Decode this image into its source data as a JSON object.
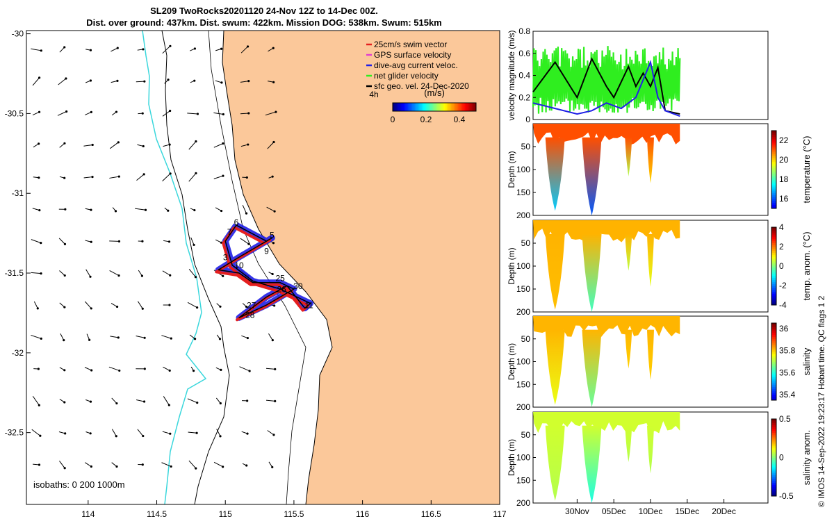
{
  "title_line1": "SL209 TwoRocks20201120 24-Nov 12Z to 14-Dec 00Z.",
  "title_line2": "Dist. over ground: 437km. Dist. swum: 422km. Mission DOG: 538km. Swum: 515km",
  "credit": "© IMOS 14-Sep-2022 19:23:17 Hobart time. QC flags 1 2",
  "colors": {
    "land": "#fbc89a",
    "coast": "#000000",
    "iso200": "#3ad7dc",
    "swim": "#e41f1f",
    "gps": "#e23fd0",
    "dac": "#1f1fe6",
    "net": "#2fee1f",
    "sfc": "#000000"
  },
  "map": {
    "xlim": [
      113.55,
      117
    ],
    "ylim": [
      -32.95,
      -29.98
    ],
    "xticks": [
      "114",
      "114.5",
      "115",
      "115.5",
      "116",
      "116.5",
      "117"
    ],
    "xtick_values": [
      114,
      114.5,
      115,
      115.5,
      116,
      116.5,
      117
    ],
    "yticks": [
      "-30",
      "-30.5",
      "-31",
      "-31.5",
      "-32",
      "-32.5"
    ],
    "ytick_values": [
      -30,
      -30.5,
      -31,
      -31.5,
      -32,
      -32.5
    ],
    "legend": [
      "25cm/s swim vector",
      "GPS surface velocity",
      "dive-avg current veloc.",
      "net glider velocity",
      "sfc geo. vel. 24-Dec-2020"
    ],
    "interval_label": "4h",
    "colorbar_unit": "(m/s)",
    "colorbar_ticks": [
      "0",
      "0.2",
      "0.4"
    ],
    "colorbar_tick_values": [
      0,
      0.2,
      0.4
    ],
    "colorbar_range": [
      0,
      0.5
    ],
    "isobath_label": "isobaths: 0   200  1000m",
    "track_labels": [
      {
        "text": "6",
        "lon": 115.08,
        "lat": -31.2
      },
      {
        "text": "7",
        "lon": 115.03,
        "lat": -31.26
      },
      {
        "text": "5",
        "lon": 115.34,
        "lat": -31.28
      },
      {
        "text": "9",
        "lon": 115.3,
        "lat": -31.38
      },
      {
        "text": "3",
        "lon": 115.0,
        "lat": -31.42
      },
      {
        "text": "10",
        "lon": 115.1,
        "lat": -31.47
      },
      {
        "text": "25",
        "lon": 115.4,
        "lat": -31.55
      },
      {
        "text": "30",
        "lon": 115.53,
        "lat": -31.6
      },
      {
        "text": "26",
        "lon": 115.41,
        "lat": -31.62
      },
      {
        "text": "27",
        "lon": 115.19,
        "lat": -31.72
      },
      {
        "text": "11",
        "lon": 115.61,
        "lat": -31.72
      },
      {
        "text": "28",
        "lon": 115.18,
        "lat": -31.78
      }
    ]
  },
  "chart_data": [
    {
      "type": "line",
      "ylabel": "velocity magnitude (m/s)",
      "ylim": [
        0,
        0.8
      ],
      "yticks": [
        "0",
        "0.2",
        "0.4",
        "0.6",
        "0.8"
      ],
      "ytick_values": [
        0,
        0.2,
        0.4,
        0.6,
        0.8
      ],
      "series": [
        {
          "name": "net glider velocity",
          "color": "#2fee1f",
          "x": [
            "2020-11-24",
            "2020-11-26",
            "2020-11-28",
            "2020-11-30",
            "2020-12-02",
            "2020-12-04",
            "2020-12-06",
            "2020-12-08",
            "2020-12-10",
            "2020-12-12",
            "2020-12-14"
          ],
          "y": [
            0.4,
            0.42,
            0.45,
            0.43,
            0.4,
            0.44,
            0.42,
            0.45,
            0.41,
            0.43,
            0.4
          ]
        },
        {
          "name": "sfc geo. vel. 24-Dec-2020",
          "color": "#000000",
          "x": [
            "2020-11-24",
            "2020-11-27",
            "2020-11-30",
            "2020-12-02",
            "2020-12-04",
            "2020-12-05",
            "2020-12-07",
            "2020-12-08",
            "2020-12-09",
            "2020-12-10",
            "2020-12-11",
            "2020-12-12",
            "2020-12-14"
          ],
          "y": [
            0.25,
            0.52,
            0.2,
            0.55,
            0.3,
            0.2,
            0.48,
            0.3,
            0.42,
            0.3,
            0.47,
            0.08,
            0.05
          ]
        },
        {
          "name": "dive-avg current veloc.",
          "color": "#1f1fe6",
          "x": [
            "2020-11-24",
            "2020-11-27",
            "2020-11-30",
            "2020-12-02",
            "2020-12-04",
            "2020-12-06",
            "2020-12-08",
            "2020-12-10",
            "2020-12-11",
            "2020-12-12",
            "2020-12-14"
          ],
          "y": [
            0.15,
            0.1,
            0.05,
            0.08,
            0.15,
            0.1,
            0.2,
            0.52,
            0.2,
            0.08,
            0.03
          ]
        }
      ]
    },
    {
      "type": "heatmap",
      "variable": "temperature (°C)",
      "ylabel": "Depth (m)",
      "ylim": [
        200,
        0
      ],
      "yticks": [
        "50",
        "100",
        "150",
        "200"
      ],
      "ytick_values": [
        50,
        100,
        150,
        200
      ],
      "colorbar_ticks": [
        "16",
        "18",
        "20",
        "22"
      ],
      "colorbar_tick_values": [
        16,
        18,
        20,
        22
      ],
      "colorbar_range": [
        15,
        23
      ],
      "dives": [
        {
          "date": "2020-11-27",
          "depth": 190,
          "deep_value": 17
        },
        {
          "date": "2020-12-02",
          "depth": 200,
          "deep_value": 16
        },
        {
          "date": "2020-12-07",
          "depth": 115,
          "deep_value": 19
        },
        {
          "date": "2020-12-10",
          "depth": 130,
          "deep_value": 20
        }
      ],
      "surface_value": 21.2
    },
    {
      "type": "heatmap",
      "variable": "temp. anom. (°C)",
      "ylabel": "Depth (m)",
      "ylim": [
        200,
        0
      ],
      "yticks": [
        "50",
        "100",
        "150",
        "200"
      ],
      "ytick_values": [
        50,
        100,
        150,
        200
      ],
      "colorbar_ticks": [
        "-4",
        "-2",
        "0",
        "2",
        "4"
      ],
      "colorbar_tick_values": [
        -4,
        -2,
        0,
        2,
        4
      ],
      "colorbar_range": [
        -4,
        4
      ],
      "dives": [
        {
          "date": "2020-11-27",
          "depth": 195,
          "deep_value": 1.5
        },
        {
          "date": "2020-12-02",
          "depth": 200,
          "deep_value": -0.5
        },
        {
          "date": "2020-12-07",
          "depth": 110,
          "deep_value": 0.5
        },
        {
          "date": "2020-12-10",
          "depth": 145,
          "deep_value": 0.8
        }
      ],
      "surface_value": 1.6
    },
    {
      "type": "heatmap",
      "variable": "salinity",
      "ylabel": "Depth (m)",
      "ylim": [
        200,
        0
      ],
      "yticks": [
        "50",
        "100",
        "150",
        "200"
      ],
      "ytick_values": [
        50,
        100,
        150,
        200
      ],
      "colorbar_ticks": [
        "35.4",
        "35.6",
        "35.8",
        "36"
      ],
      "colorbar_tick_values": [
        35.4,
        35.6,
        35.8,
        36
      ],
      "colorbar_range": [
        35.35,
        36.05
      ],
      "dives": [
        {
          "date": "2020-11-27",
          "depth": 195,
          "deep_value": 35.75
        },
        {
          "date": "2020-12-02",
          "depth": 200,
          "deep_value": 35.65
        },
        {
          "date": "2020-12-07",
          "depth": 115,
          "deep_value": 35.8
        },
        {
          "date": "2020-12-10",
          "depth": 140,
          "deep_value": 35.8
        }
      ],
      "surface_value": 35.82
    },
    {
      "type": "heatmap",
      "variable": "salinity anom.",
      "ylabel": "Depth (m)",
      "ylim": [
        200,
        0
      ],
      "yticks": [
        "50",
        "100",
        "150",
        "200"
      ],
      "ytick_values": [
        50,
        100,
        150,
        200
      ],
      "colorbar_ticks": [
        "-0.5",
        "0",
        "0.5"
      ],
      "colorbar_tick_values": [
        -0.5,
        0,
        0.5
      ],
      "colorbar_range": [
        -0.5,
        0.5
      ],
      "dives": [
        {
          "date": "2020-11-27",
          "depth": 195,
          "deep_value": 0.05
        },
        {
          "date": "2020-12-02",
          "depth": 200,
          "deep_value": -0.1
        },
        {
          "date": "2020-12-07",
          "depth": 110,
          "deep_value": 0.05
        },
        {
          "date": "2020-12-10",
          "depth": 135,
          "deep_value": 0.05
        }
      ],
      "surface_value": 0.08,
      "xticks": [
        "30Nov",
        "05Dec",
        "10Dec",
        "15Dec",
        "20Dec"
      ],
      "xtick_values": [
        "2020-11-30",
        "2020-12-05",
        "2020-12-10",
        "2020-12-15",
        "2020-12-20"
      ],
      "xlim": [
        "2020-11-24",
        "2020-12-26"
      ]
    }
  ]
}
